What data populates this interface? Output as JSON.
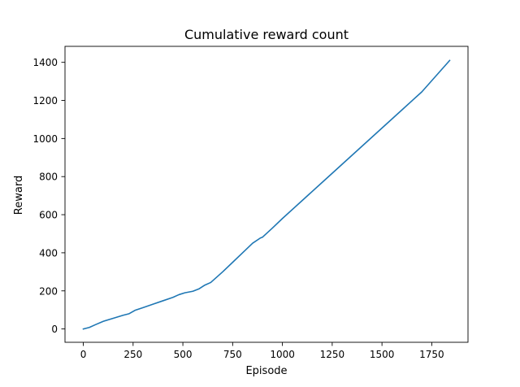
{
  "chart_data": {
    "type": "line",
    "title": "Cumulative reward count",
    "xlabel": "Episode",
    "ylabel": "Reward",
    "xlim": [
      -92,
      1932
    ],
    "ylim": [
      -70,
      1484
    ],
    "xticks": [
      0,
      250,
      500,
      750,
      1000,
      1250,
      1500,
      1750
    ],
    "yticks": [
      0,
      200,
      400,
      600,
      800,
      1000,
      1200,
      1400
    ],
    "grid": false,
    "series": [
      {
        "color": "#1f77b4",
        "x": [
          0,
          30,
          60,
          100,
          150,
          200,
          230,
          260,
          300,
          350,
          400,
          450,
          480,
          510,
          550,
          580,
          610,
          640,
          700,
          750,
          800,
          850,
          890,
          900,
          950,
          1000,
          1100,
          1200,
          1300,
          1400,
          1500,
          1600,
          1700,
          1840
        ],
        "y": [
          0,
          8,
          22,
          40,
          56,
          72,
          80,
          98,
          112,
          130,
          148,
          166,
          180,
          190,
          198,
          210,
          230,
          244,
          300,
          350,
          400,
          450,
          478,
          482,
          530,
          580,
          675,
          770,
          865,
          960,
          1055,
          1150,
          1245,
          1410
        ]
      }
    ]
  }
}
